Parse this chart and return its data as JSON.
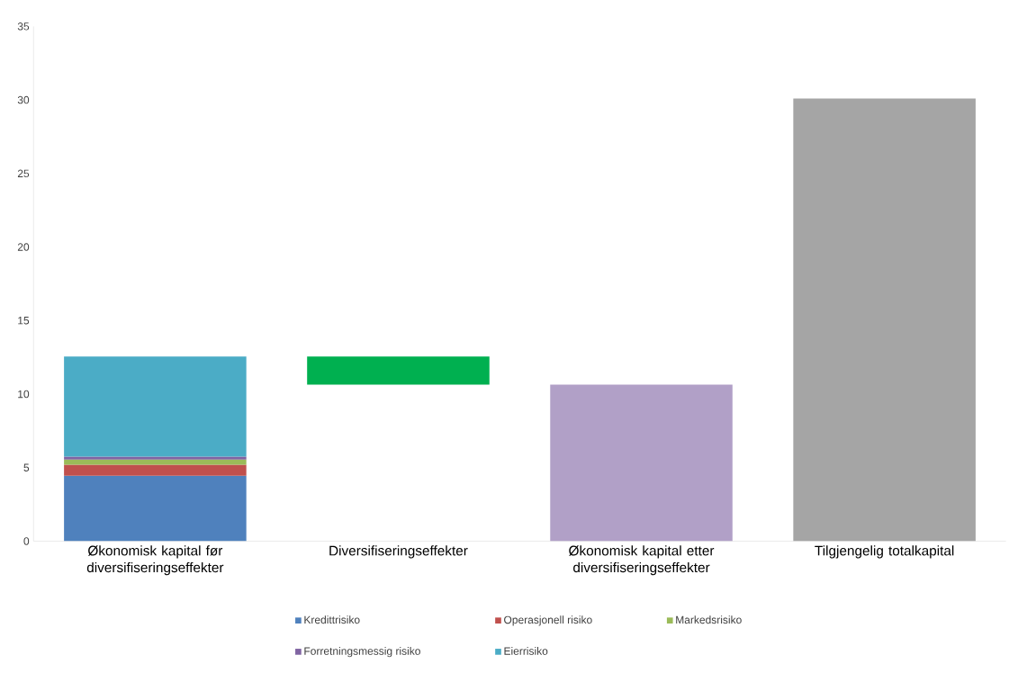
{
  "chart_data": {
    "type": "bar",
    "stacked": true,
    "categories": [
      "Økonomisk kapital før diversifiseringseffekter",
      "Diversifiseringseffekter",
      "Økonomisk kapital etter diversifiseringseffekter",
      "Tilgjengelig totalkapital"
    ],
    "series": [
      {
        "name": "Kredittrisiko",
        "color": "#4f81bd",
        "values": [
          4.45,
          null,
          null,
          null
        ]
      },
      {
        "name": "Operasjonell risiko",
        "color": "#c0504d",
        "values": [
          0.75,
          null,
          null,
          null
        ]
      },
      {
        "name": "Markedsrisiko",
        "color": "#9bbb59",
        "values": [
          0.35,
          null,
          null,
          null
        ]
      },
      {
        "name": "Forretningsmessig risiko",
        "color": "#8064a2",
        "values": [
          0.2,
          null,
          null,
          null
        ]
      },
      {
        "name": "Eierrisiko",
        "color": "#4bacc6",
        "values": [
          6.8,
          null,
          null,
          null
        ]
      },
      {
        "color": "#00b050",
        "values": [
          null,
          1.9,
          null,
          null
        ],
        "base": [
          null,
          10.65,
          null,
          null
        ]
      },
      {
        "color": "#b1a0c7",
        "values": [
          null,
          null,
          10.65,
          null
        ]
      },
      {
        "color": "#a5a5a5",
        "values": [
          null,
          null,
          null,
          30.1
        ]
      }
    ],
    "ylim": [
      0,
      35
    ],
    "yticks": [
      0,
      5,
      10,
      15,
      20,
      25,
      30,
      35
    ],
    "grid": false,
    "legend": "bottom"
  }
}
